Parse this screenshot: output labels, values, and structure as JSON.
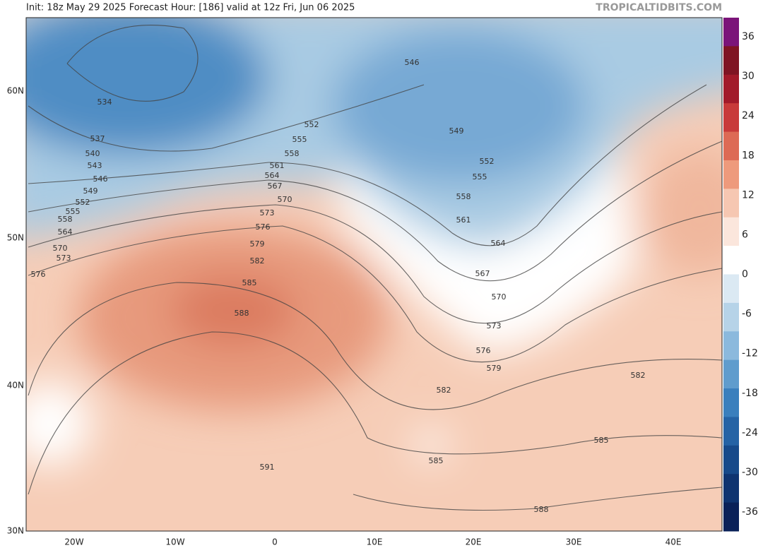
{
  "header": {
    "info": "Init: 18z May 29 2025   Forecast Hour: [186]   valid at 12z Fri, Jun 06 2025",
    "watermark": "TROPICALTIDBITS.COM"
  },
  "map": {
    "lat_labels": [
      "60N",
      "50N",
      "40N",
      "30N"
    ],
    "lon_labels": [
      "20W",
      "10W",
      "0",
      "10E",
      "20E",
      "30E",
      "40E"
    ],
    "contour_labels": [
      534,
      537,
      540,
      543,
      546,
      549,
      552,
      555,
      558,
      564,
      570,
      573,
      576,
      588,
      585,
      582,
      579,
      576,
      573,
      570,
      567,
      564,
      561,
      558,
      555,
      552,
      546,
      549,
      552,
      555,
      558,
      561,
      564,
      567,
      570,
      573,
      576,
      579,
      582,
      585,
      591,
      582,
      585,
      588
    ]
  },
  "colorbar": {
    "labels": [
      36,
      30,
      24,
      18,
      12,
      6,
      0,
      -6,
      -12,
      -18,
      -24,
      -30,
      -36
    ]
  }
}
